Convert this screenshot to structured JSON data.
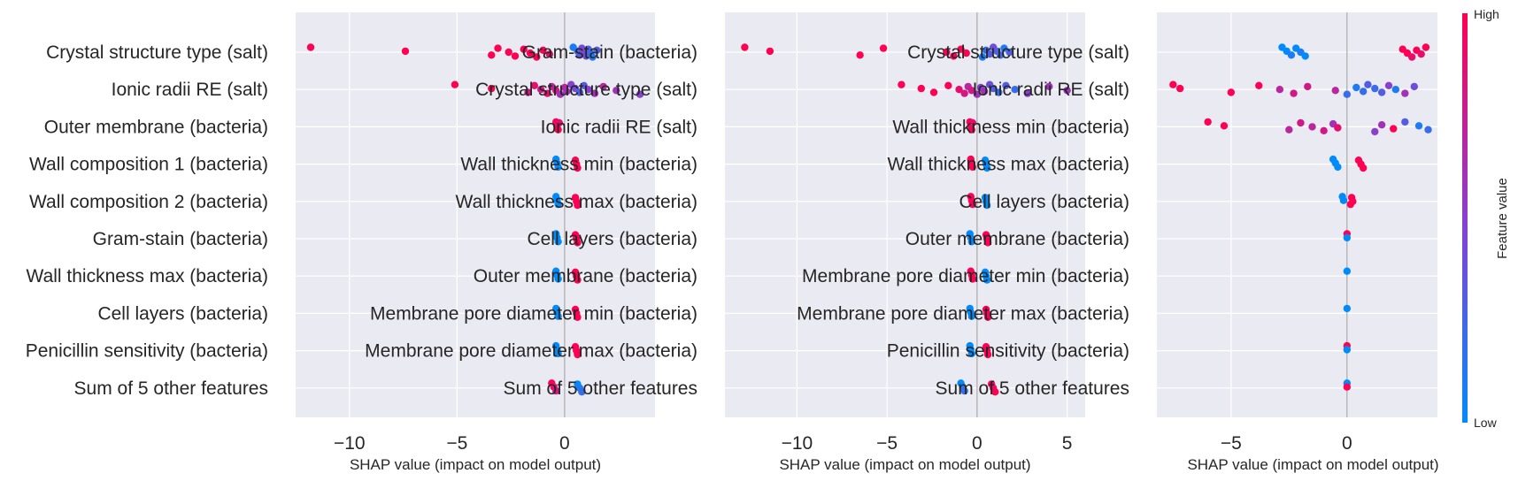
{
  "colors": {
    "panel_bg": "#EAEAF2",
    "grid": "#FFFFFF",
    "zero_line": "#999999",
    "low": "#008BFB",
    "mid": "#8A3FD1",
    "high": "#FF0052",
    "text": "#262626"
  },
  "chart_data": [
    {
      "type": "scatter",
      "subtype": "shap-beeswarm",
      "xlabel": "SHAP value (impact on model output)",
      "xlim": [
        -12.5,
        4.2
      ],
      "xticks": [
        -10,
        -5,
        0
      ],
      "xtick_labels": [
        "−10",
        "−5",
        "0"
      ],
      "grid": true,
      "features": [
        {
          "name": "Crystal structure type (salt)",
          "points": [
            [
              -11.8,
              1.0
            ],
            [
              -7.4,
              1.0
            ],
            [
              -3.4,
              1.0
            ],
            [
              -3.1,
              1.0
            ],
            [
              -2.6,
              1.0
            ],
            [
              -2.3,
              1.0
            ],
            [
              -1.9,
              1.0
            ],
            [
              -1.6,
              1.0
            ],
            [
              -1.3,
              1.0
            ],
            [
              -1.0,
              1.0
            ],
            [
              -0.7,
              0.9
            ],
            [
              0.4,
              0.1
            ],
            [
              0.6,
              0.2
            ],
            [
              0.7,
              0.3
            ],
            [
              0.8,
              0.4
            ],
            [
              0.9,
              0.5
            ],
            [
              1.0,
              0.4
            ],
            [
              1.1,
              0.3
            ],
            [
              1.2,
              0.2
            ],
            [
              1.3,
              0.1
            ],
            [
              1.5,
              0.3
            ]
          ]
        },
        {
          "name": "Ionic radii RE (salt)",
          "points": [
            [
              -5.1,
              1.0
            ],
            [
              -3.4,
              1.0
            ],
            [
              -1.7,
              0.8
            ],
            [
              -1.4,
              0.9
            ],
            [
              -1.1,
              0.8
            ],
            [
              -0.8,
              0.9
            ],
            [
              -0.6,
              0.7
            ],
            [
              -0.4,
              0.8
            ],
            [
              -0.2,
              0.6
            ],
            [
              0.0,
              0.7
            ],
            [
              0.1,
              0.6
            ],
            [
              0.3,
              0.5
            ],
            [
              0.5,
              0.4
            ],
            [
              0.7,
              0.3
            ],
            [
              0.9,
              0.3
            ],
            [
              1.1,
              0.5
            ],
            [
              1.4,
              0.6
            ],
            [
              1.8,
              0.7
            ],
            [
              2.4,
              0.6
            ],
            [
              3.5,
              0.5
            ]
          ]
        },
        {
          "name": "Outer membrane (bacteria)",
          "points": [
            [
              -0.4,
              1.0
            ],
            [
              -0.35,
              0.9
            ],
            [
              -0.3,
              1.0
            ],
            [
              -0.25,
              0.9
            ]
          ]
        },
        {
          "name": "Wall composition 1 (bacteria)",
          "points": [
            [
              -0.4,
              0.0
            ],
            [
              -0.35,
              0.0
            ],
            [
              -0.3,
              0.0
            ],
            [
              0.5,
              1.0
            ],
            [
              0.55,
              1.0
            ],
            [
              0.6,
              1.0
            ]
          ]
        },
        {
          "name": "Wall composition 2 (bacteria)",
          "points": [
            [
              -0.4,
              0.0
            ],
            [
              -0.35,
              0.0
            ],
            [
              -0.3,
              0.0
            ],
            [
              0.5,
              1.0
            ],
            [
              0.55,
              1.0
            ],
            [
              0.6,
              1.0
            ]
          ]
        },
        {
          "name": "Gram-stain (bacteria)",
          "points": [
            [
              -0.4,
              0.0
            ],
            [
              -0.35,
              0.0
            ],
            [
              -0.3,
              0.0
            ],
            [
              0.5,
              1.0
            ],
            [
              0.55,
              1.0
            ],
            [
              0.6,
              1.0
            ]
          ]
        },
        {
          "name": "Wall thickness max (bacteria)",
          "points": [
            [
              -0.4,
              0.0
            ],
            [
              -0.35,
              0.0
            ],
            [
              -0.3,
              0.0
            ],
            [
              0.5,
              1.0
            ],
            [
              0.55,
              1.0
            ],
            [
              0.6,
              1.0
            ]
          ]
        },
        {
          "name": "Cell layers (bacteria)",
          "points": [
            [
              -0.4,
              0.0
            ],
            [
              -0.35,
              0.0
            ],
            [
              -0.3,
              0.0
            ],
            [
              0.5,
              1.0
            ],
            [
              0.55,
              1.0
            ],
            [
              0.6,
              1.0
            ]
          ]
        },
        {
          "name": "Penicillin sensitivity (bacteria)",
          "points": [
            [
              -0.4,
              0.0
            ],
            [
              -0.35,
              0.0
            ],
            [
              -0.3,
              0.0
            ],
            [
              0.5,
              1.0
            ],
            [
              0.55,
              1.0
            ],
            [
              0.6,
              1.0
            ]
          ]
        },
        {
          "name": "Sum of 5 other features",
          "points": [
            [
              -0.6,
              1.0
            ],
            [
              -0.5,
              0.9
            ],
            [
              -0.4,
              0.8
            ],
            [
              0.6,
              0.0
            ],
            [
              0.7,
              0.1
            ],
            [
              0.8,
              0.2
            ]
          ]
        }
      ]
    },
    {
      "type": "scatter",
      "subtype": "shap-beeswarm",
      "xlabel": "SHAP value (impact on model output)",
      "xlim": [
        -14.0,
        6.0
      ],
      "xticks": [
        -10,
        -5,
        0,
        5
      ],
      "xtick_labels": [
        "−10",
        "−5",
        "0",
        "5"
      ],
      "grid": true,
      "features": [
        {
          "name": "Gram-stain (bacteria)",
          "points": [
            [
              -12.9,
              1.0
            ],
            [
              -11.5,
              1.0
            ],
            [
              -6.5,
              1.0
            ],
            [
              -5.2,
              1.0
            ],
            [
              -1.7,
              1.0
            ],
            [
              -1.3,
              1.0
            ],
            [
              -0.9,
              1.0
            ],
            [
              -0.6,
              1.0
            ],
            [
              0.3,
              0.1
            ],
            [
              0.5,
              0.2
            ],
            [
              0.7,
              0.3
            ],
            [
              0.9,
              0.4
            ],
            [
              1.1,
              0.3
            ],
            [
              1.3,
              0.2
            ],
            [
              1.5,
              0.1
            ],
            [
              1.8,
              0.3
            ]
          ]
        },
        {
          "name": "Crystal structure type (salt)",
          "points": [
            [
              -4.2,
              1.0
            ],
            [
              -3.1,
              1.0
            ],
            [
              -2.4,
              1.0
            ],
            [
              -1.6,
              1.0
            ],
            [
              -1.0,
              0.9
            ],
            [
              -0.7,
              0.8
            ],
            [
              -0.5,
              0.7
            ],
            [
              -0.3,
              0.8
            ],
            [
              0.0,
              0.6
            ],
            [
              0.2,
              0.5
            ],
            [
              0.4,
              0.6
            ],
            [
              0.7,
              0.4
            ],
            [
              0.9,
              0.3
            ],
            [
              1.2,
              0.2
            ],
            [
              1.6,
              0.3
            ],
            [
              2.1,
              0.2
            ],
            [
              2.8,
              0.5
            ],
            [
              4.0,
              0.6
            ],
            [
              5.0,
              0.6
            ]
          ]
        },
        {
          "name": "Ionic radii RE (salt)",
          "points": [
            [
              -0.4,
              1.0
            ],
            [
              -0.35,
              0.9
            ],
            [
              -0.3,
              1.0
            ],
            [
              -0.25,
              0.9
            ]
          ]
        },
        {
          "name": "Wall thickness min (bacteria)",
          "points": [
            [
              -0.35,
              1.0
            ],
            [
              -0.3,
              1.0
            ],
            [
              -0.25,
              1.0
            ],
            [
              0.45,
              0.0
            ],
            [
              0.5,
              0.0
            ],
            [
              0.55,
              0.0
            ]
          ]
        },
        {
          "name": "Wall thickness max (bacteria)",
          "points": [
            [
              -0.35,
              1.0
            ],
            [
              -0.3,
              1.0
            ],
            [
              -0.25,
              1.0
            ],
            [
              0.45,
              0.0
            ],
            [
              0.5,
              0.0
            ],
            [
              0.55,
              0.0
            ]
          ]
        },
        {
          "name": "Cell layers (bacteria)",
          "points": [
            [
              -0.4,
              0.0
            ],
            [
              -0.35,
              0.0
            ],
            [
              -0.3,
              0.0
            ],
            [
              0.5,
              1.0
            ],
            [
              0.55,
              1.0
            ],
            [
              0.6,
              1.0
            ]
          ]
        },
        {
          "name": "Outer membrane (bacteria)",
          "points": [
            [
              -0.35,
              1.0
            ],
            [
              -0.3,
              1.0
            ],
            [
              -0.25,
              1.0
            ],
            [
              0.45,
              0.0
            ],
            [
              0.5,
              0.0
            ],
            [
              0.55,
              0.0
            ]
          ]
        },
        {
          "name": "Membrane pore diameter min (bacteria)",
          "points": [
            [
              -0.4,
              0.0
            ],
            [
              -0.35,
              0.0
            ],
            [
              -0.3,
              0.0
            ],
            [
              0.5,
              1.0
            ],
            [
              0.55,
              1.0
            ],
            [
              0.6,
              1.0
            ]
          ]
        },
        {
          "name": "Membrane pore diameter max (bacteria)",
          "points": [
            [
              -0.4,
              0.0
            ],
            [
              -0.35,
              0.0
            ],
            [
              -0.3,
              0.0
            ],
            [
              0.5,
              1.0
            ],
            [
              0.55,
              1.0
            ],
            [
              0.6,
              1.0
            ]
          ]
        },
        {
          "name": "Sum of 5 other features",
          "points": [
            [
              -0.9,
              0.0
            ],
            [
              -0.8,
              0.1
            ],
            [
              -0.7,
              0.2
            ],
            [
              0.8,
              1.0
            ],
            [
              0.9,
              0.9
            ],
            [
              1.0,
              1.0
            ]
          ]
        }
      ]
    },
    {
      "type": "scatter",
      "subtype": "shap-beeswarm",
      "xlabel": "SHAP value (impact on model output)",
      "xlim": [
        -8.2,
        3.9
      ],
      "xticks": [
        -5,
        0
      ],
      "xtick_labels": [
        "−5",
        "0"
      ],
      "grid": true,
      "features": [
        {
          "name": "Crystal structure type (salt)",
          "points": [
            [
              -2.8,
              0.0
            ],
            [
              -2.6,
              0.0
            ],
            [
              -2.4,
              0.1
            ],
            [
              -2.2,
              0.0
            ],
            [
              -2.0,
              0.1
            ],
            [
              -1.8,
              0.0
            ],
            [
              2.4,
              1.0
            ],
            [
              2.6,
              1.0
            ],
            [
              2.8,
              0.9
            ],
            [
              3.0,
              1.0
            ],
            [
              3.2,
              0.9
            ],
            [
              3.4,
              1.0
            ]
          ]
        },
        {
          "name": "Ionic radii RE (salt)",
          "points": [
            [
              -7.5,
              1.0
            ],
            [
              -7.2,
              1.0
            ],
            [
              -5.0,
              1.0
            ],
            [
              -3.8,
              1.0
            ],
            [
              -2.9,
              0.7
            ],
            [
              -2.3,
              0.8
            ],
            [
              -1.7,
              0.8
            ],
            [
              -0.5,
              0.7
            ],
            [
              0.0,
              0.2
            ],
            [
              0.4,
              0.1
            ],
            [
              0.7,
              0.2
            ],
            [
              0.9,
              0.3
            ],
            [
              1.2,
              0.2
            ],
            [
              1.5,
              0.3
            ],
            [
              1.8,
              0.5
            ],
            [
              2.1,
              0.1
            ],
            [
              2.5,
              0.6
            ],
            [
              2.9,
              0.4
            ]
          ]
        },
        {
          "name": "Wall thickness min (bacteria)",
          "points": [
            [
              -6.0,
              1.0
            ],
            [
              -5.3,
              1.0
            ],
            [
              -2.5,
              0.7
            ],
            [
              -2.0,
              0.8
            ],
            [
              -1.5,
              0.7
            ],
            [
              -1.0,
              0.8
            ],
            [
              -0.6,
              0.6
            ],
            [
              -0.4,
              0.9
            ],
            [
              1.2,
              0.5
            ],
            [
              1.5,
              0.6
            ],
            [
              2.0,
              1.0
            ],
            [
              2.5,
              0.3
            ],
            [
              3.1,
              0.1
            ],
            [
              3.5,
              0.2
            ]
          ]
        },
        {
          "name": "Wall thickness max (bacteria)",
          "points": [
            [
              -0.6,
              0.0
            ],
            [
              -0.5,
              0.0
            ],
            [
              -0.4,
              0.0
            ],
            [
              0.5,
              1.0
            ],
            [
              0.6,
              1.0
            ],
            [
              0.7,
              1.0
            ]
          ]
        },
        {
          "name": "Cell layers (bacteria)",
          "points": [
            [
              -0.2,
              0.0
            ],
            [
              -0.15,
              0.0
            ],
            [
              0.15,
              1.0
            ],
            [
              0.2,
              1.0
            ],
            [
              0.25,
              1.0
            ]
          ]
        },
        {
          "name": "Outer membrane (bacteria)",
          "points": [
            [
              0.0,
              1.0
            ],
            [
              0.0,
              0.0
            ]
          ]
        },
        {
          "name": "Membrane pore diameter min (bacteria)",
          "points": [
            [
              0.0,
              0.0
            ]
          ]
        },
        {
          "name": "Membrane pore diameter max (bacteria)",
          "points": [
            [
              0.0,
              0.0
            ]
          ]
        },
        {
          "name": "Penicillin sensitivity (bacteria)",
          "points": [
            [
              0.0,
              1.0
            ],
            [
              0.0,
              0.0
            ]
          ]
        },
        {
          "name": "Sum of 5 other features",
          "points": [
            [
              0.0,
              0.0
            ],
            [
              0.0,
              1.0
            ]
          ]
        }
      ]
    }
  ],
  "colorbar": {
    "label": "Feature value",
    "high_label": "High",
    "low_label": "Low"
  }
}
